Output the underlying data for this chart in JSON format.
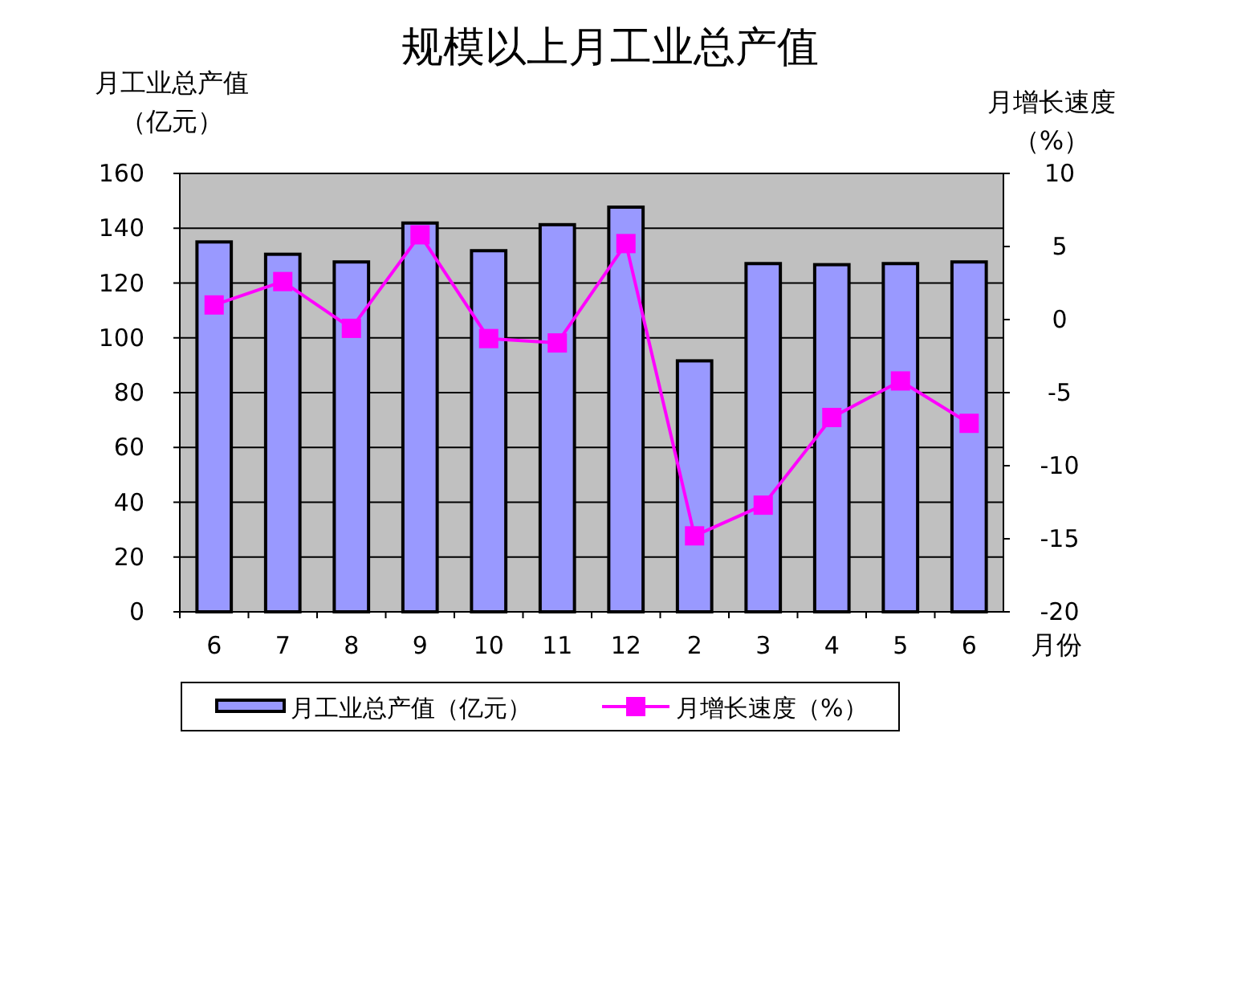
{
  "chart_data": {
    "type": "bar",
    "title": "规模以上月工业总产值",
    "xlabel": "月份",
    "ylabel": "月工业总产值（亿元）",
    "y2label": "月增长速度（%）",
    "categories": [
      "6",
      "7",
      "8",
      "9",
      "10",
      "11",
      "12",
      "2",
      "3",
      "4",
      "5",
      "6"
    ],
    "series": [
      {
        "name": "月工业总产值（亿元）",
        "color": "#9999ff",
        "values": [
          135,
          130.5,
          127.7,
          141.9,
          131.8,
          141.3,
          147.7,
          91.6,
          127.1,
          126.7,
          127.1,
          127.7
        ]
      },
      {
        "name": "月增长速度（%）",
        "type": "line",
        "axis": "y2",
        "color": "#ff00ff",
        "marker": "square",
        "values": [
          1.0,
          2.6,
          -0.6,
          5.8,
          -1.3,
          -1.6,
          5.2,
          -14.8,
          -12.7,
          -6.7,
          -4.2,
          -7.1
        ]
      }
    ],
    "ylim": [
      0,
      160
    ],
    "yticks": [
      0,
      20,
      40,
      60,
      80,
      100,
      120,
      140,
      160
    ],
    "y2lim": [
      -20,
      10
    ],
    "y2ticks": [
      -20,
      -15,
      -10,
      -5,
      0,
      5,
      10
    ],
    "grid": "y",
    "legend": "bottom"
  }
}
